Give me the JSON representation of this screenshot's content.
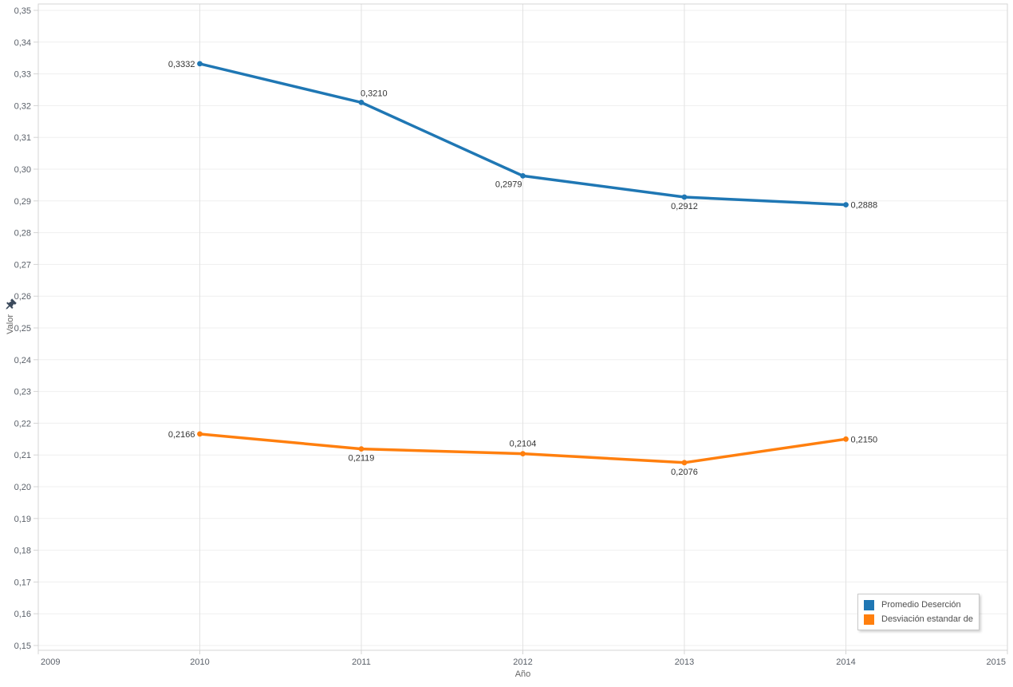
{
  "chart_data": {
    "type": "line",
    "title": "",
    "xlabel": "Año",
    "ylabel": "Valor",
    "xlim": [
      2009,
      2015
    ],
    "ylim": [
      0.15,
      0.35
    ],
    "x_ticks": [
      2009,
      2010,
      2011,
      2012,
      2013,
      2014,
      2015
    ],
    "x_tick_labels": [
      "2009",
      "2010",
      "2011",
      "2012",
      "2013",
      "2014",
      "2015"
    ],
    "y_tick_step": 0.01,
    "y_tick_labels": [
      "0,35",
      "0,34",
      "0,33",
      "0,32",
      "0,31",
      "0,30",
      "0,29",
      "0,28",
      "0,27",
      "0,26",
      "0,25",
      "0,24",
      "0,23",
      "0,22",
      "0,21",
      "0,20",
      "0,19",
      "0,18",
      "0,17",
      "0,16",
      "0,15"
    ],
    "decimal_separator": ",",
    "grid": true,
    "legend_position": "bottom-right",
    "series": [
      {
        "name": "Promedio Deserción",
        "color": "#1f77b4",
        "points": [
          {
            "x": 2010,
            "y": 0.3332,
            "label": "0,3332",
            "label_pos": "left"
          },
          {
            "x": 2011,
            "y": 0.321,
            "label": "0,3210",
            "label_pos": "above-start"
          },
          {
            "x": 2012,
            "y": 0.2979,
            "label": "0,2979",
            "label_pos": "below-end"
          },
          {
            "x": 2013,
            "y": 0.2912,
            "label": "0,2912",
            "label_pos": "below"
          },
          {
            "x": 2014,
            "y": 0.2888,
            "label": "0,2888",
            "label_pos": "right"
          }
        ]
      },
      {
        "name": "Desviación estandar des..",
        "color": "#ff7f0e",
        "points": [
          {
            "x": 2010,
            "y": 0.2166,
            "label": "0,2166",
            "label_pos": "left"
          },
          {
            "x": 2011,
            "y": 0.2119,
            "label": "0,2119",
            "label_pos": "below"
          },
          {
            "x": 2012,
            "y": 0.2104,
            "label": "0,2104",
            "label_pos": "above"
          },
          {
            "x": 2013,
            "y": 0.2076,
            "label": "0,2076",
            "label_pos": "below"
          },
          {
            "x": 2014,
            "y": 0.215,
            "label": "0,2150",
            "label_pos": "right"
          }
        ]
      }
    ],
    "colors": {
      "background": "#ffffff",
      "h_grid": "#efefef",
      "v_grid": "#e2e2e2",
      "border": "#d4d4d4",
      "tick_label": "#5a6069",
      "axis_title": "#666666",
      "data_label": "#333333",
      "legend_text": "#4f4f4f",
      "pin_icon": "#3b4a5c"
    }
  }
}
